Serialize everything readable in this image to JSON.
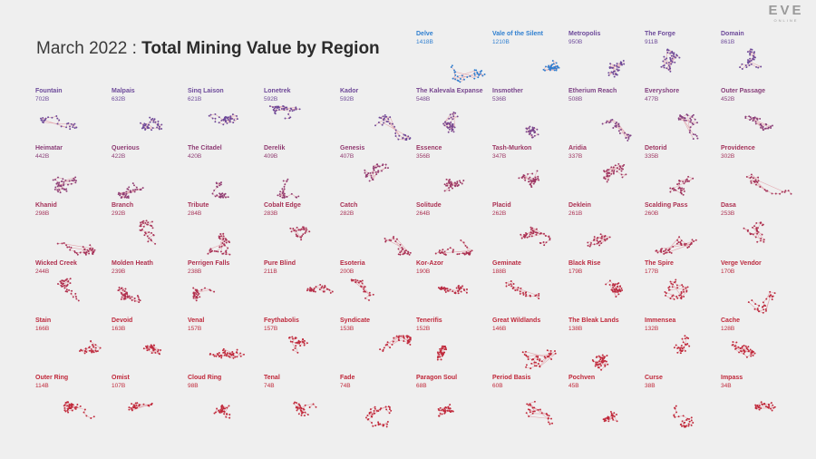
{
  "title": {
    "prefix": "March 2022 : ",
    "main": "Total Mining Value by Region"
  },
  "logo": {
    "word": "EVE",
    "sub": "ONLINE"
  },
  "colors": {
    "high": "#2f7fd0",
    "mid": "#6d4a9a",
    "low": "#c0283a",
    "edge": "#e3a7ae"
  },
  "chart_data": {
    "type": "small-multiples",
    "title": "March 2022 : Total Mining Value by Region",
    "unit": "B",
    "regions": [
      {
        "name": "Delve",
        "label": "1418B",
        "value": 1418
      },
      {
        "name": "Vale of the Silent",
        "label": "1210B",
        "value": 1210
      },
      {
        "name": "Metropolis",
        "label": "950B",
        "value": 950
      },
      {
        "name": "The Forge",
        "label": "911B",
        "value": 911
      },
      {
        "name": "Domain",
        "label": "861B",
        "value": 861
      },
      {
        "name": "Fountain",
        "label": "702B",
        "value": 702
      },
      {
        "name": "Malpais",
        "label": "632B",
        "value": 632
      },
      {
        "name": "Sinq Laison",
        "label": "621B",
        "value": 621
      },
      {
        "name": "Lonetrek",
        "label": "592B",
        "value": 592
      },
      {
        "name": "Kador",
        "label": "592B",
        "value": 592
      },
      {
        "name": "The Kalevala Expanse",
        "label": "548B",
        "value": 548
      },
      {
        "name": "Insmother",
        "label": "536B",
        "value": 536
      },
      {
        "name": "Etherium Reach",
        "label": "508B",
        "value": 508
      },
      {
        "name": "Everyshore",
        "label": "477B",
        "value": 477
      },
      {
        "name": "Outer Passage",
        "label": "452B",
        "value": 452
      },
      {
        "name": "Heimatar",
        "label": "442B",
        "value": 442
      },
      {
        "name": "Querious",
        "label": "422B",
        "value": 422
      },
      {
        "name": "The Citadel",
        "label": "420B",
        "value": 420
      },
      {
        "name": "Derelik",
        "label": "409B",
        "value": 409
      },
      {
        "name": "Genesis",
        "label": "407B",
        "value": 407
      },
      {
        "name": "Essence",
        "label": "356B",
        "value": 356
      },
      {
        "name": "Tash-Murkon",
        "label": "347B",
        "value": 347
      },
      {
        "name": "Aridia",
        "label": "337B",
        "value": 337
      },
      {
        "name": "Detorid",
        "label": "335B",
        "value": 335
      },
      {
        "name": "Providence",
        "label": "302B",
        "value": 302
      },
      {
        "name": "Khanid",
        "label": "298B",
        "value": 298
      },
      {
        "name": "Branch",
        "label": "292B",
        "value": 292
      },
      {
        "name": "Tribute",
        "label": "284B",
        "value": 284
      },
      {
        "name": "Cobalt Edge",
        "label": "283B",
        "value": 283
      },
      {
        "name": "Catch",
        "label": "282B",
        "value": 282
      },
      {
        "name": "Solitude",
        "label": "264B",
        "value": 264
      },
      {
        "name": "Placid",
        "label": "262B",
        "value": 262
      },
      {
        "name": "Deklein",
        "label": "261B",
        "value": 261
      },
      {
        "name": "Scalding Pass",
        "label": "260B",
        "value": 260
      },
      {
        "name": "Dasa",
        "label": "253B",
        "value": 253
      },
      {
        "name": "Wicked Creek",
        "label": "244B",
        "value": 244
      },
      {
        "name": "Molden Heath",
        "label": "239B",
        "value": 239
      },
      {
        "name": "Perrigen Falls",
        "label": "238B",
        "value": 238
      },
      {
        "name": "Pure Blind",
        "label": "211B",
        "value": 211
      },
      {
        "name": "Esoteria",
        "label": "200B",
        "value": 200
      },
      {
        "name": "Kor-Azor",
        "label": "190B",
        "value": 190
      },
      {
        "name": "Geminate",
        "label": "188B",
        "value": 188
      },
      {
        "name": "Black Rise",
        "label": "179B",
        "value": 179
      },
      {
        "name": "The Spire",
        "label": "177B",
        "value": 177
      },
      {
        "name": "Verge Vendor",
        "label": "170B",
        "value": 170
      },
      {
        "name": "Stain",
        "label": "166B",
        "value": 166
      },
      {
        "name": "Devoid",
        "label": "163B",
        "value": 163
      },
      {
        "name": "Venal",
        "label": "157B",
        "value": 157
      },
      {
        "name": "Feythabolis",
        "label": "157B",
        "value": 157
      },
      {
        "name": "Syndicate",
        "label": "153B",
        "value": 153
      },
      {
        "name": "Tenerifis",
        "label": "152B",
        "value": 152
      },
      {
        "name": "Great Wildlands",
        "label": "146B",
        "value": 146
      },
      {
        "name": "The Bleak Lands",
        "label": "138B",
        "value": 138
      },
      {
        "name": "Immensea",
        "label": "132B",
        "value": 132
      },
      {
        "name": "Cache",
        "label": "128B",
        "value": 128
      },
      {
        "name": "Outer Ring",
        "label": "114B",
        "value": 114
      },
      {
        "name": "Omist",
        "label": "107B",
        "value": 107
      },
      {
        "name": "Cloud Ring",
        "label": "98B",
        "value": 98
      },
      {
        "name": "Tenal",
        "label": "74B",
        "value": 74
      },
      {
        "name": "Fade",
        "label": "74B",
        "value": 74
      },
      {
        "name": "Paragon Soul",
        "label": "68B",
        "value": 68
      },
      {
        "name": "Period Basis",
        "label": "60B",
        "value": 60
      },
      {
        "name": "Pochven",
        "label": "45B",
        "value": 45
      },
      {
        "name": "Curse",
        "label": "38B",
        "value": 38
      },
      {
        "name": "Impass",
        "label": "34B",
        "value": 34
      }
    ]
  }
}
